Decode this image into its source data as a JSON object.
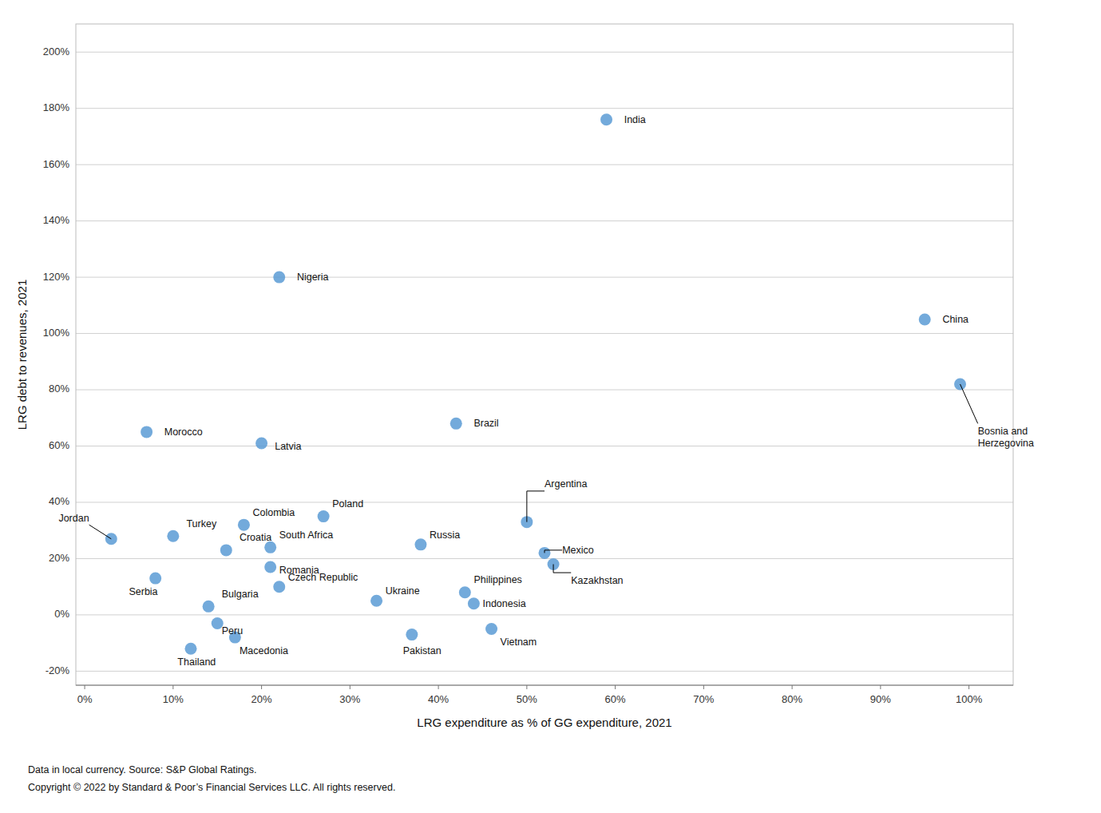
{
  "chart_data": {
    "type": "scatter",
    "color": "#5b9bd5",
    "grid": true,
    "xlabel": "LRG expenditure as % of GG expenditure, 2021",
    "ylabel": "LRG debt to revenues, 2021",
    "notes": [
      "Data in local currency. Source: S&P Global Ratings.",
      "Copyright © 2022 by Standard & Poor’s Financial Services LLC. All rights reserved."
    ],
    "annotations": [
      "Jordan",
      "Morocco",
      "Serbia",
      "Turkey",
      "Thailand",
      "Bulgaria",
      "Peru",
      "Croatia",
      "Macedonia",
      "Colombia",
      "Latvia",
      "South Africa",
      "Romania",
      "Czech Republic",
      "Nigeria",
      "Poland",
      "Ukraine",
      "Pakistan",
      "Russia",
      "Brazil",
      "Philippines",
      "Indonesia",
      "Vietnam",
      "Argentina",
      "Mexico",
      "Kazakhstan",
      "India",
      "China",
      "Bosnia and\nHerzegovina"
    ],
    "x": [
      3,
      7,
      8,
      10,
      12,
      14,
      15,
      16,
      17,
      18,
      20,
      21,
      21,
      22,
      22,
      27,
      33,
      37,
      38,
      42,
      43,
      44,
      46,
      50,
      52,
      53,
      59,
      95,
      99
    ],
    "values": [
      27,
      65,
      13,
      28,
      -12,
      3,
      -3,
      23,
      -8,
      32,
      61,
      24,
      17,
      10,
      120,
      35,
      5,
      -7,
      25,
      68,
      8,
      4,
      -5,
      33,
      22,
      18,
      176,
      105,
      82
    ],
    "xlim": [
      -1,
      105
    ],
    "ylim": [
      -25,
      210
    ],
    "xticks": [
      {
        "value": 0,
        "label": "0%"
      },
      {
        "value": 10,
        "label": "10%"
      },
      {
        "value": 20,
        "label": "20%"
      },
      {
        "value": 30,
        "label": "30%"
      },
      {
        "value": 40,
        "label": "40%"
      },
      {
        "value": 50,
        "label": "50%"
      },
      {
        "value": 60,
        "label": "60%"
      },
      {
        "value": 70,
        "label": "70%"
      },
      {
        "value": 80,
        "label": "80%"
      },
      {
        "value": 90,
        "label": "90%"
      },
      {
        "value": 100,
        "label": "100%"
      }
    ],
    "yticks": [
      {
        "value": -20,
        "label": "-20%"
      },
      {
        "value": 0,
        "label": "0%"
      },
      {
        "value": 20,
        "label": "20%"
      },
      {
        "value": 40,
        "label": "40%"
      },
      {
        "value": 60,
        "label": "60%"
      },
      {
        "value": 80,
        "label": "80%"
      },
      {
        "value": 100,
        "label": "100%"
      },
      {
        "value": 120,
        "label": "120%"
      },
      {
        "value": 140,
        "label": "140%"
      },
      {
        "value": 160,
        "label": "160%"
      },
      {
        "value": 180,
        "label": "180%"
      },
      {
        "value": 200,
        "label": "200%"
      }
    ]
  }
}
